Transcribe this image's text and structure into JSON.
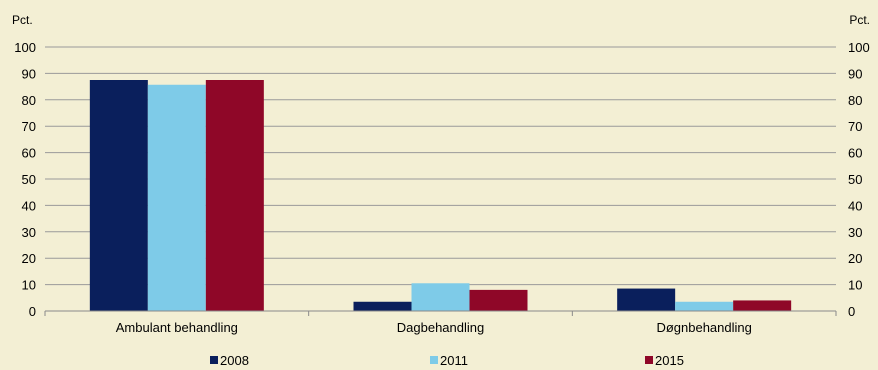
{
  "chart_data": {
    "type": "bar",
    "categories": [
      "Ambulant behandling",
      "Dagbehandling",
      "Døgnbehandling"
    ],
    "series": [
      {
        "name": "2008",
        "color": "#0a1f5c",
        "values": [
          87.5,
          3.5,
          8.5
        ]
      },
      {
        "name": "2011",
        "color": "#7ecbe8",
        "values": [
          85.7,
          10.5,
          3.5
        ]
      },
      {
        "name": "2015",
        "color": "#8f0728",
        "values": [
          87.5,
          8.0,
          4.0
        ]
      }
    ],
    "title": "",
    "xlabel": "",
    "ylabel_left": "Pct.",
    "ylabel_right": "Pct.",
    "ylim": [
      0,
      100
    ],
    "yticks": [
      0,
      10,
      20,
      30,
      40,
      50,
      60,
      70,
      80,
      90,
      100
    ],
    "grid": true,
    "legend_position": "bottom",
    "background_color": "#f3efd4",
    "gridline_color": "#9a9a9a"
  }
}
